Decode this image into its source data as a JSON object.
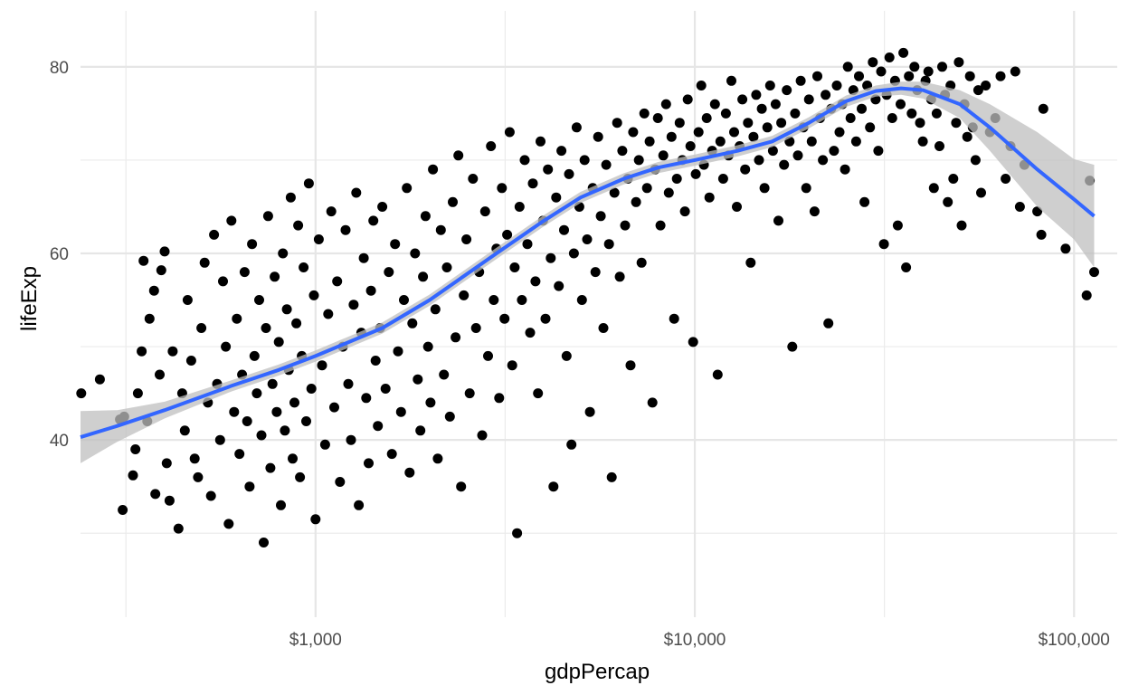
{
  "chart_data": {
    "type": "scatter",
    "title": "",
    "xlabel": "gdpPercap",
    "ylabel": "lifeExp",
    "x_scale": "log10",
    "xlim": [
      240,
      130000
    ],
    "ylim": [
      21,
      86
    ],
    "x_major_ticks": [
      {
        "value": 1000,
        "label": "$1,000"
      },
      {
        "value": 10000,
        "label": "$10,000"
      },
      {
        "value": 100000,
        "label": "$100,000"
      }
    ],
    "x_minor_ticks": [
      316.2,
      3162,
      31623
    ],
    "y_major_ticks": [
      {
        "value": 40,
        "label": "40"
      },
      {
        "value": 60,
        "label": "60"
      },
      {
        "value": 80,
        "label": "80"
      }
    ],
    "y_minor_ticks": [
      30,
      50,
      70
    ],
    "grid": true,
    "legend": "none",
    "point_color": "#000000",
    "points": [
      [
        241,
        45.0
      ],
      [
        270,
        46.5
      ],
      [
        305,
        42.2
      ],
      [
        310,
        32.5
      ],
      [
        313,
        42.5
      ],
      [
        330,
        36.2
      ],
      [
        335,
        39.0
      ],
      [
        340,
        45.0
      ],
      [
        348,
        49.5
      ],
      [
        352,
        59.2
      ],
      [
        360,
        42.0
      ],
      [
        365,
        53.0
      ],
      [
        375,
        56.0
      ],
      [
        378,
        34.2
      ],
      [
        388,
        47.0
      ],
      [
        392,
        58.2
      ],
      [
        400,
        60.2
      ],
      [
        405,
        37.5
      ],
      [
        412,
        33.5
      ],
      [
        420,
        49.5
      ],
      [
        435,
        30.5
      ],
      [
        445,
        45.0
      ],
      [
        452,
        41.0
      ],
      [
        460,
        55.0
      ],
      [
        470,
        48.5
      ],
      [
        480,
        38.0
      ],
      [
        490,
        36.0
      ],
      [
        500,
        52.0
      ],
      [
        510,
        59.0
      ],
      [
        520,
        44.0
      ],
      [
        530,
        34.0
      ],
      [
        540,
        62.0
      ],
      [
        550,
        46.0
      ],
      [
        560,
        40.0
      ],
      [
        570,
        57.0
      ],
      [
        580,
        50.0
      ],
      [
        590,
        31.0
      ],
      [
        600,
        63.5
      ],
      [
        610,
        43.0
      ],
      [
        620,
        53.0
      ],
      [
        630,
        38.5
      ],
      [
        640,
        47.0
      ],
      [
        650,
        58.0
      ],
      [
        660,
        42.0
      ],
      [
        670,
        35.0
      ],
      [
        680,
        61.0
      ],
      [
        690,
        49.0
      ],
      [
        700,
        45.0
      ],
      [
        710,
        55.0
      ],
      [
        720,
        40.5
      ],
      [
        730,
        29.0
      ],
      [
        740,
        52.0
      ],
      [
        750,
        64.0
      ],
      [
        760,
        37.0
      ],
      [
        770,
        46.0
      ],
      [
        780,
        57.5
      ],
      [
        790,
        43.0
      ],
      [
        800,
        50.5
      ],
      [
        810,
        33.0
      ],
      [
        820,
        60.0
      ],
      [
        830,
        41.0
      ],
      [
        840,
        54.0
      ],
      [
        850,
        47.5
      ],
      [
        860,
        66.0
      ],
      [
        870,
        38.0
      ],
      [
        880,
        44.0
      ],
      [
        890,
        52.5
      ],
      [
        900,
        63.0
      ],
      [
        910,
        36.0
      ],
      [
        920,
        49.0
      ],
      [
        930,
        58.5
      ],
      [
        945,
        42.0
      ],
      [
        960,
        67.5
      ],
      [
        975,
        45.5
      ],
      [
        990,
        55.5
      ],
      [
        1000,
        31.5
      ],
      [
        1020,
        61.5
      ],
      [
        1040,
        48.0
      ],
      [
        1060,
        39.5
      ],
      [
        1080,
        53.5
      ],
      [
        1100,
        64.5
      ],
      [
        1120,
        43.5
      ],
      [
        1140,
        57.0
      ],
      [
        1160,
        35.5
      ],
      [
        1180,
        50.0
      ],
      [
        1200,
        62.5
      ],
      [
        1220,
        46.0
      ],
      [
        1240,
        40.0
      ],
      [
        1260,
        54.5
      ],
      [
        1280,
        66.5
      ],
      [
        1300,
        33.0
      ],
      [
        1320,
        51.5
      ],
      [
        1340,
        59.5
      ],
      [
        1360,
        44.5
      ],
      [
        1380,
        37.5
      ],
      [
        1400,
        56.0
      ],
      [
        1420,
        63.5
      ],
      [
        1440,
        48.5
      ],
      [
        1460,
        41.5
      ],
      [
        1480,
        52.0
      ],
      [
        1500,
        65.0
      ],
      [
        1530,
        45.5
      ],
      [
        1560,
        58.0
      ],
      [
        1590,
        38.5
      ],
      [
        1620,
        61.0
      ],
      [
        1650,
        49.5
      ],
      [
        1680,
        43.0
      ],
      [
        1710,
        55.0
      ],
      [
        1740,
        67.0
      ],
      [
        1770,
        36.5
      ],
      [
        1800,
        52.5
      ],
      [
        1830,
        60.0
      ],
      [
        1860,
        46.5
      ],
      [
        1890,
        41.0
      ],
      [
        1920,
        57.5
      ],
      [
        1950,
        64.0
      ],
      [
        1980,
        50.0
      ],
      [
        2010,
        44.0
      ],
      [
        2040,
        69.0
      ],
      [
        2070,
        54.0
      ],
      [
        2100,
        38.0
      ],
      [
        2140,
        62.5
      ],
      [
        2180,
        47.0
      ],
      [
        2220,
        58.5
      ],
      [
        2260,
        42.5
      ],
      [
        2300,
        65.5
      ],
      [
        2340,
        51.0
      ],
      [
        2380,
        70.5
      ],
      [
        2420,
        35.0
      ],
      [
        2460,
        55.5
      ],
      [
        2500,
        61.5
      ],
      [
        2550,
        45.0
      ],
      [
        2600,
        68.0
      ],
      [
        2650,
        52.0
      ],
      [
        2700,
        58.0
      ],
      [
        2750,
        40.5
      ],
      [
        2800,
        64.5
      ],
      [
        2850,
        49.0
      ],
      [
        2900,
        71.5
      ],
      [
        2950,
        55.0
      ],
      [
        3000,
        60.5
      ],
      [
        3050,
        44.5
      ],
      [
        3100,
        67.0
      ],
      [
        3150,
        53.0
      ],
      [
        3200,
        62.0
      ],
      [
        3250,
        73.0
      ],
      [
        3300,
        48.0
      ],
      [
        3350,
        58.5
      ],
      [
        3400,
        30.0
      ],
      [
        3450,
        65.0
      ],
      [
        3500,
        55.0
      ],
      [
        3560,
        70.0
      ],
      [
        3620,
        61.0
      ],
      [
        3680,
        51.5
      ],
      [
        3740,
        67.5
      ],
      [
        3800,
        57.0
      ],
      [
        3860,
        45.0
      ],
      [
        3920,
        72.0
      ],
      [
        3980,
        63.5
      ],
      [
        4040,
        53.0
      ],
      [
        4100,
        69.0
      ],
      [
        4170,
        59.5
      ],
      [
        4240,
        35.0
      ],
      [
        4310,
        66.0
      ],
      [
        4380,
        56.5
      ],
      [
        4450,
        71.0
      ],
      [
        4520,
        62.5
      ],
      [
        4590,
        49.0
      ],
      [
        4660,
        68.5
      ],
      [
        4730,
        39.5
      ],
      [
        4800,
        60.0
      ],
      [
        4880,
        73.5
      ],
      [
        4960,
        65.0
      ],
      [
        5040,
        55.0
      ],
      [
        5120,
        70.0
      ],
      [
        5200,
        61.5
      ],
      [
        5290,
        43.0
      ],
      [
        5380,
        67.0
      ],
      [
        5470,
        58.0
      ],
      [
        5560,
        72.5
      ],
      [
        5650,
        64.0
      ],
      [
        5740,
        52.0
      ],
      [
        5840,
        69.5
      ],
      [
        5940,
        61.0
      ],
      [
        6040,
        36.0
      ],
      [
        6140,
        66.5
      ],
      [
        6240,
        74.0
      ],
      [
        6340,
        57.5
      ],
      [
        6440,
        71.0
      ],
      [
        6550,
        63.0
      ],
      [
        6660,
        68.0
      ],
      [
        6770,
        48.0
      ],
      [
        6880,
        73.0
      ],
      [
        7000,
        65.5
      ],
      [
        7120,
        70.0
      ],
      [
        7240,
        59.0
      ],
      [
        7360,
        75.0
      ],
      [
        7480,
        67.0
      ],
      [
        7600,
        72.0
      ],
      [
        7730,
        44.0
      ],
      [
        7860,
        69.0
      ],
      [
        7990,
        74.5
      ],
      [
        8120,
        63.0
      ],
      [
        8260,
        70.5
      ],
      [
        8400,
        76.0
      ],
      [
        8540,
        66.5
      ],
      [
        8680,
        72.5
      ],
      [
        8820,
        53.0
      ],
      [
        8970,
        68.0
      ],
      [
        9120,
        74.0
      ],
      [
        9270,
        70.0
      ],
      [
        9420,
        64.5
      ],
      [
        9580,
        76.5
      ],
      [
        9740,
        71.5
      ],
      [
        9900,
        50.5
      ],
      [
        10060,
        68.5
      ],
      [
        10230,
        73.0
      ],
      [
        10400,
        78.0
      ],
      [
        10570,
        69.5
      ],
      [
        10750,
        74.5
      ],
      [
        10930,
        66.0
      ],
      [
        11110,
        71.0
      ],
      [
        11300,
        76.0
      ],
      [
        11490,
        47.0
      ],
      [
        11680,
        72.0
      ],
      [
        11880,
        68.0
      ],
      [
        12080,
        75.0
      ],
      [
        12280,
        70.5
      ],
      [
        12490,
        78.5
      ],
      [
        12700,
        73.0
      ],
      [
        12910,
        65.0
      ],
      [
        13130,
        71.5
      ],
      [
        13350,
        76.5
      ],
      [
        13580,
        69.0
      ],
      [
        13810,
        74.0
      ],
      [
        14040,
        59.0
      ],
      [
        14280,
        72.5
      ],
      [
        14520,
        77.0
      ],
      [
        14770,
        70.0
      ],
      [
        15020,
        75.5
      ],
      [
        15270,
        67.0
      ],
      [
        15530,
        73.5
      ],
      [
        15800,
        78.0
      ],
      [
        16070,
        71.0
      ],
      [
        16340,
        76.0
      ],
      [
        16620,
        63.5
      ],
      [
        16900,
        74.0
      ],
      [
        17190,
        69.5
      ],
      [
        17480,
        77.5
      ],
      [
        17780,
        72.0
      ],
      [
        18080,
        50.0
      ],
      [
        18390,
        75.0
      ],
      [
        18700,
        70.5
      ],
      [
        19020,
        78.5
      ],
      [
        19340,
        73.5
      ],
      [
        19670,
        67.0
      ],
      [
        20000,
        76.5
      ],
      [
        20340,
        72.0
      ],
      [
        20690,
        64.5
      ],
      [
        21040,
        79.0
      ],
      [
        21400,
        74.5
      ],
      [
        21760,
        70.0
      ],
      [
        22130,
        77.0
      ],
      [
        22510,
        52.5
      ],
      [
        22890,
        75.5
      ],
      [
        23280,
        71.0
      ],
      [
        23680,
        78.0
      ],
      [
        24080,
        73.0
      ],
      [
        24490,
        76.0
      ],
      [
        24900,
        69.0
      ],
      [
        25320,
        80.0
      ],
      [
        25750,
        74.5
      ],
      [
        26190,
        77.5
      ],
      [
        26640,
        72.0
      ],
      [
        27090,
        79.0
      ],
      [
        27550,
        75.5
      ],
      [
        28020,
        65.5
      ],
      [
        28490,
        78.0
      ],
      [
        28980,
        73.5
      ],
      [
        29470,
        80.5
      ],
      [
        29970,
        76.5
      ],
      [
        30480,
        71.0
      ],
      [
        31000,
        79.5
      ],
      [
        31530,
        61.0
      ],
      [
        32060,
        77.0
      ],
      [
        32610,
        81.0
      ],
      [
        33160,
        74.5
      ],
      [
        33730,
        78.5
      ],
      [
        34300,
        63.0
      ],
      [
        34880,
        76.0
      ],
      [
        35480,
        81.5
      ],
      [
        36080,
        58.5
      ],
      [
        36690,
        79.0
      ],
      [
        37320,
        75.0
      ],
      [
        37950,
        80.0
      ],
      [
        38600,
        77.5
      ],
      [
        39250,
        74.0
      ],
      [
        39920,
        72.0
      ],
      [
        40600,
        78.5
      ],
      [
        41290,
        79.5
      ],
      [
        41990,
        76.5
      ],
      [
        42700,
        67.0
      ],
      [
        43430,
        75.0
      ],
      [
        44170,
        71.5
      ],
      [
        44920,
        80.0
      ],
      [
        45680,
        77.0
      ],
      [
        46460,
        65.5
      ],
      [
        47250,
        78.0
      ],
      [
        48050,
        68.0
      ],
      [
        48870,
        74.0
      ],
      [
        49700,
        80.5
      ],
      [
        50550,
        63.0
      ],
      [
        51410,
        76.0
      ],
      [
        52280,
        72.5
      ],
      [
        53170,
        79.0
      ],
      [
        54070,
        73.5
      ],
      [
        55000,
        70.0
      ],
      [
        55930,
        77.5
      ],
      [
        56880,
        66.5
      ],
      [
        58500,
        78.0
      ],
      [
        60000,
        73.0
      ],
      [
        62000,
        74.5
      ],
      [
        64000,
        79.0
      ],
      [
        66000,
        68.0
      ],
      [
        68000,
        71.5
      ],
      [
        70000,
        79.5
      ],
      [
        72000,
        65.0
      ],
      [
        74000,
        69.5
      ],
      [
        80000,
        64.5
      ],
      [
        82000,
        62.0
      ],
      [
        83000,
        75.5
      ],
      [
        95000,
        60.5
      ],
      [
        108000,
        55.5
      ],
      [
        110000,
        67.8
      ],
      [
        113000,
        58.0
      ]
    ],
    "smooth_color": "#3366ff",
    "ribbon_color": "#bfbfbf",
    "smooth": [
      {
        "x": 240,
        "y": 40.3,
        "lo": 37.5,
        "hi": 43.1
      },
      {
        "x": 300,
        "y": 41.5,
        "lo": 39.8,
        "hi": 43.2
      },
      {
        "x": 400,
        "y": 43.2,
        "lo": 42.3,
        "hi": 44.1
      },
      {
        "x": 600,
        "y": 45.8,
        "lo": 45.2,
        "hi": 46.4
      },
      {
        "x": 800,
        "y": 47.5,
        "lo": 46.9,
        "hi": 48.1
      },
      {
        "x": 1000,
        "y": 49.0,
        "lo": 48.4,
        "hi": 49.6
      },
      {
        "x": 1500,
        "y": 52.0,
        "lo": 51.4,
        "hi": 52.6
      },
      {
        "x": 2000,
        "y": 55.0,
        "lo": 54.4,
        "hi": 55.6
      },
      {
        "x": 3000,
        "y": 60.0,
        "lo": 59.4,
        "hi": 60.6
      },
      {
        "x": 4000,
        "y": 63.5,
        "lo": 62.9,
        "hi": 64.1
      },
      {
        "x": 5000,
        "y": 66.0,
        "lo": 65.4,
        "hi": 66.6
      },
      {
        "x": 6500,
        "y": 68.0,
        "lo": 67.4,
        "hi": 68.6
      },
      {
        "x": 8000,
        "y": 69.2,
        "lo": 68.6,
        "hi": 69.8
      },
      {
        "x": 10000,
        "y": 70.0,
        "lo": 69.4,
        "hi": 70.6
      },
      {
        "x": 13000,
        "y": 71.0,
        "lo": 70.4,
        "hi": 71.6
      },
      {
        "x": 16000,
        "y": 72.0,
        "lo": 71.4,
        "hi": 72.6
      },
      {
        "x": 20000,
        "y": 74.0,
        "lo": 73.4,
        "hi": 74.6
      },
      {
        "x": 25000,
        "y": 76.3,
        "lo": 75.7,
        "hi": 76.9
      },
      {
        "x": 30000,
        "y": 77.4,
        "lo": 76.8,
        "hi": 78.0
      },
      {
        "x": 35000,
        "y": 77.7,
        "lo": 77.0,
        "hi": 78.4
      },
      {
        "x": 40000,
        "y": 77.5,
        "lo": 76.6,
        "hi": 78.4
      },
      {
        "x": 50000,
        "y": 76.0,
        "lo": 74.5,
        "hi": 77.5
      },
      {
        "x": 60000,
        "y": 73.5,
        "lo": 71.0,
        "hi": 76.0
      },
      {
        "x": 80000,
        "y": 69.0,
        "lo": 65.0,
        "hi": 73.0
      },
      {
        "x": 100000,
        "y": 65.8,
        "lo": 61.5,
        "hi": 70.1
      },
      {
        "x": 113000,
        "y": 64.0,
        "lo": 58.5,
        "hi": 69.5
      }
    ]
  }
}
